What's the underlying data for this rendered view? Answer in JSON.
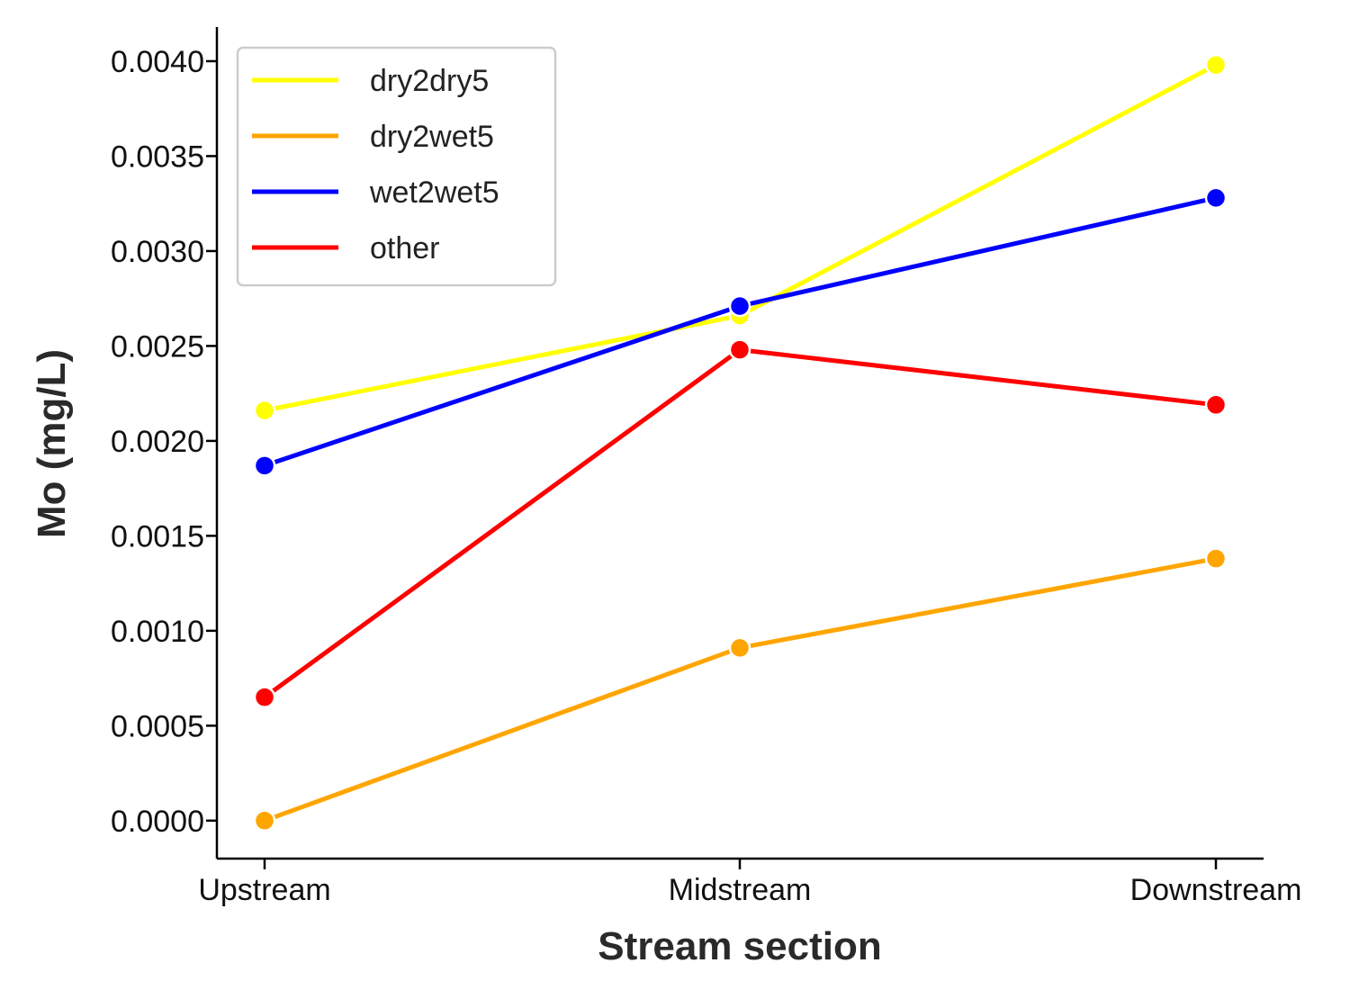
{
  "chart_data": {
    "type": "line",
    "xlabel": "Stream section",
    "ylabel": "Mo (mg/L)",
    "categories": [
      "Upstream",
      "Midstream",
      "Downstream"
    ],
    "ylim": [
      -0.0002,
      0.00418
    ],
    "yticks": [
      "0.0000",
      "0.0005",
      "0.0010",
      "0.0015",
      "0.0020",
      "0.0025",
      "0.0030",
      "0.0035",
      "0.0040"
    ],
    "grid": false,
    "legend_position": "top-left",
    "series": [
      {
        "name": "dry2dry5",
        "color": "#ffff00",
        "values": [
          0.00216,
          0.00266,
          0.00398
        ]
      },
      {
        "name": "dry2wet5",
        "color": "#ffa500",
        "values": [
          0.0,
          0.00091,
          0.00138
        ]
      },
      {
        "name": "wet2wet5",
        "color": "#0000ff",
        "values": [
          0.00187,
          0.00271,
          0.00328
        ]
      },
      {
        "name": "other",
        "color": "#ff0000",
        "values": [
          0.00065,
          0.00248,
          0.00219
        ]
      }
    ]
  }
}
